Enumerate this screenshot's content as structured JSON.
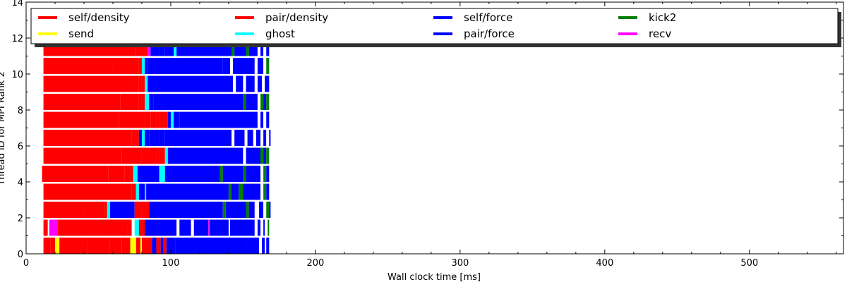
{
  "chart_data": {
    "type": "bar",
    "orientation": "horizontal-timeline",
    "title": "",
    "xlabel": "Wall clock time [ms]",
    "ylabel": "Thread ID for MPI Rank 2",
    "xlim": [
      0,
      565
    ],
    "ylim": [
      0,
      14
    ],
    "xticks": [
      0,
      100,
      200,
      300,
      400,
      500
    ],
    "yticks": [
      0,
      2,
      4,
      6,
      8,
      10,
      12,
      14
    ],
    "legend_position": "top",
    "legend": [
      {
        "name": "self/density",
        "color": "#ff0000"
      },
      {
        "name": "send",
        "color": "#ffff00"
      },
      {
        "name": "pair/density",
        "color": "#ff0000"
      },
      {
        "name": "ghost",
        "color": "#00ffff"
      },
      {
        "name": "self/force",
        "color": "#0000ff"
      },
      {
        "name": "pair/force",
        "color": "#0000ff"
      },
      {
        "name": "kick2",
        "color": "#008000"
      },
      {
        "name": "recv",
        "color": "#ff00ff"
      }
    ],
    "threads": [
      {
        "id": 0,
        "tasks": [
          [
            12,
            17,
            "#ff0000"
          ],
          [
            17,
            20,
            "#ff0000"
          ],
          [
            20,
            22,
            "#ffff00"
          ],
          [
            22,
            23,
            "#ffff00"
          ],
          [
            23,
            42,
            "#ff0000"
          ],
          [
            42,
            58,
            "#ff0000"
          ],
          [
            58,
            66,
            "#ff0000"
          ],
          [
            66,
            72,
            "#ff0000"
          ],
          [
            72,
            76,
            "#ffff00"
          ],
          [
            76,
            79,
            "#ff0000"
          ],
          [
            79,
            80,
            "#ffff00"
          ],
          [
            80,
            87,
            "#ff0000"
          ],
          [
            87,
            90,
            "#0000ff"
          ],
          [
            90,
            93,
            "#ff0000"
          ],
          [
            93,
            95,
            "#0000ff"
          ],
          [
            95,
            97,
            "#ff0000"
          ],
          [
            97,
            103,
            "#0000ff"
          ],
          [
            103,
            152,
            "#0000ff"
          ],
          [
            152,
            161,
            "#0000ff"
          ],
          [
            161,
            163,
            "#ffffff"
          ],
          [
            163,
            165,
            "#0000ff"
          ],
          [
            165,
            166,
            "#ffffff"
          ],
          [
            166,
            168,
            "#0000ff"
          ]
        ]
      },
      {
        "id": 1,
        "tasks": [
          [
            12,
            15,
            "#ff0000"
          ],
          [
            15,
            16,
            "#ffffff"
          ],
          [
            16,
            22,
            "#ff00ff"
          ],
          [
            22,
            70,
            "#ff0000"
          ],
          [
            70,
            73,
            "#ff0000"
          ],
          [
            73,
            75,
            "#ffffff"
          ],
          [
            75,
            78,
            "#00ffff"
          ],
          [
            78,
            82,
            "#ff0000"
          ],
          [
            82,
            104,
            "#0000ff"
          ],
          [
            104,
            106,
            "#ffffff"
          ],
          [
            106,
            114,
            "#0000ff"
          ],
          [
            114,
            116,
            "#ffffff"
          ],
          [
            116,
            126,
            "#0000ff"
          ],
          [
            126,
            127,
            "#ff00ff"
          ],
          [
            127,
            140,
            "#0000ff"
          ],
          [
            140,
            141,
            "#ffffff"
          ],
          [
            141,
            158,
            "#0000ff"
          ],
          [
            158,
            160,
            "#ffffff"
          ],
          [
            160,
            162,
            "#0000ff"
          ],
          [
            162,
            164,
            "#ffffff"
          ],
          [
            164,
            165,
            "#0000ff"
          ],
          [
            165,
            167,
            "#ffffff"
          ],
          [
            167,
            168,
            "#008000"
          ]
        ]
      },
      {
        "id": 2,
        "tasks": [
          [
            12,
            40,
            "#ff0000"
          ],
          [
            40,
            54,
            "#ff0000"
          ],
          [
            54,
            56,
            "#ff0000"
          ],
          [
            56,
            58,
            "#00ffff"
          ],
          [
            58,
            75,
            "#0000ff"
          ],
          [
            75,
            80,
            "#ff0000"
          ],
          [
            80,
            85,
            "#ff0000"
          ],
          [
            85,
            136,
            "#0000ff"
          ],
          [
            136,
            138,
            "#008000"
          ],
          [
            138,
            152,
            "#0000ff"
          ],
          [
            152,
            154,
            "#008000"
          ],
          [
            154,
            158,
            "#0000ff"
          ],
          [
            158,
            161,
            "#ffffff"
          ],
          [
            161,
            164,
            "#0000ff"
          ],
          [
            164,
            166,
            "#ffffff"
          ],
          [
            166,
            168,
            "#008000"
          ],
          [
            168,
            169,
            "#0000ff"
          ]
        ]
      },
      {
        "id": 3,
        "tasks": [
          [
            12,
            73,
            "#ff0000"
          ],
          [
            73,
            76,
            "#ff0000"
          ],
          [
            76,
            78,
            "#00ffff"
          ],
          [
            78,
            82,
            "#0000ff"
          ],
          [
            82,
            83,
            "#00ffff"
          ],
          [
            83,
            140,
            "#0000ff"
          ],
          [
            140,
            142,
            "#008000"
          ],
          [
            142,
            147,
            "#0000ff"
          ],
          [
            147,
            150,
            "#008000"
          ],
          [
            150,
            162,
            "#0000ff"
          ],
          [
            162,
            164,
            "#ffffff"
          ],
          [
            164,
            166,
            "#008000"
          ],
          [
            166,
            168,
            "#0000ff"
          ]
        ]
      },
      {
        "id": 4,
        "tasks": [
          [
            11,
            57,
            "#ff0000"
          ],
          [
            57,
            68,
            "#ff0000"
          ],
          [
            68,
            72,
            "#ff0000"
          ],
          [
            72,
            74,
            "#ff0000"
          ],
          [
            74,
            77,
            "#00ffff"
          ],
          [
            77,
            92,
            "#0000ff"
          ],
          [
            92,
            96,
            "#00ffff"
          ],
          [
            96,
            134,
            "#0000ff"
          ],
          [
            134,
            136,
            "#008000"
          ],
          [
            136,
            150,
            "#0000ff"
          ],
          [
            150,
            152,
            "#008000"
          ],
          [
            152,
            162,
            "#0000ff"
          ],
          [
            162,
            164,
            "#ffffff"
          ],
          [
            164,
            166,
            "#008000"
          ],
          [
            166,
            168,
            "#0000ff"
          ]
        ]
      },
      {
        "id": 5,
        "tasks": [
          [
            12,
            66,
            "#ff0000"
          ],
          [
            66,
            80,
            "#ff0000"
          ],
          [
            80,
            90,
            "#ff0000"
          ],
          [
            90,
            92,
            "#ff0000"
          ],
          [
            92,
            96,
            "#ff0000"
          ],
          [
            96,
            98,
            "#00ffff"
          ],
          [
            98,
            150,
            "#0000ff"
          ],
          [
            150,
            152,
            "#ffffff"
          ],
          [
            152,
            162,
            "#0000ff"
          ],
          [
            162,
            164,
            "#008000"
          ],
          [
            164,
            166,
            "#0000ff"
          ],
          [
            166,
            168,
            "#008000"
          ]
        ]
      },
      {
        "id": 6,
        "tasks": [
          [
            12,
            73,
            "#ff0000"
          ],
          [
            73,
            78,
            "#ff0000"
          ],
          [
            78,
            80,
            "#0000ff"
          ],
          [
            80,
            82,
            "#00ffff"
          ],
          [
            82,
            85,
            "#0000ff"
          ],
          [
            85,
            92,
            "#0000ff"
          ],
          [
            92,
            96,
            "#0000ff"
          ],
          [
            96,
            142,
            "#0000ff"
          ],
          [
            142,
            144,
            "#ffffff"
          ],
          [
            144,
            151,
            "#0000ff"
          ],
          [
            151,
            153,
            "#ffffff"
          ],
          [
            153,
            157,
            "#0000ff"
          ],
          [
            157,
            159,
            "#ffffff"
          ],
          [
            159,
            162,
            "#0000ff"
          ],
          [
            162,
            164,
            "#ffffff"
          ],
          [
            164,
            166,
            "#0000ff"
          ],
          [
            166,
            168,
            "#ffffff"
          ],
          [
            168,
            169,
            "#0000ff"
          ]
        ]
      },
      {
        "id": 7,
        "tasks": [
          [
            12,
            64,
            "#ff0000"
          ],
          [
            64,
            82,
            "#ff0000"
          ],
          [
            82,
            86,
            "#ff0000"
          ],
          [
            86,
            90,
            "#ff0000"
          ],
          [
            90,
            92,
            "#ff0000"
          ],
          [
            92,
            98,
            "#ff0000"
          ],
          [
            98,
            100,
            "#0000ff"
          ],
          [
            100,
            102,
            "#00ffff"
          ],
          [
            102,
            106,
            "#0000ff"
          ],
          [
            106,
            160,
            "#0000ff"
          ],
          [
            160,
            162,
            "#ffffff"
          ],
          [
            162,
            164,
            "#0000ff"
          ],
          [
            164,
            166,
            "#ffffff"
          ],
          [
            166,
            168,
            "#0000ff"
          ]
        ]
      },
      {
        "id": 8,
        "tasks": [
          [
            12,
            65,
            "#ff0000"
          ],
          [
            65,
            78,
            "#ff0000"
          ],
          [
            78,
            80,
            "#ff0000"
          ],
          [
            80,
            82,
            "#ff0000"
          ],
          [
            82,
            85,
            "#00ffff"
          ],
          [
            85,
            88,
            "#0000ff"
          ],
          [
            88,
            150,
            "#0000ff"
          ],
          [
            150,
            152,
            "#008000"
          ],
          [
            152,
            160,
            "#0000ff"
          ],
          [
            160,
            162,
            "#ffffff"
          ],
          [
            162,
            164,
            "#008000"
          ],
          [
            164,
            166,
            "#0000ff"
          ],
          [
            166,
            168,
            "#008000"
          ]
        ]
      },
      {
        "id": 9,
        "tasks": [
          [
            12,
            71,
            "#ff0000"
          ],
          [
            71,
            78,
            "#ff0000"
          ],
          [
            78,
            80,
            "#ff0000"
          ],
          [
            80,
            82,
            "#ff0000"
          ],
          [
            82,
            84,
            "#00ffff"
          ],
          [
            84,
            143,
            "#0000ff"
          ],
          [
            143,
            145,
            "#ffffff"
          ],
          [
            145,
            150,
            "#0000ff"
          ],
          [
            150,
            152,
            "#ffffff"
          ],
          [
            152,
            158,
            "#0000ff"
          ],
          [
            158,
            160,
            "#ffffff"
          ],
          [
            160,
            163,
            "#0000ff"
          ],
          [
            163,
            165,
            "#ffffff"
          ],
          [
            165,
            168,
            "#0000ff"
          ]
        ]
      },
      {
        "id": 10,
        "tasks": [
          [
            12,
            60,
            "#ff0000"
          ],
          [
            60,
            78,
            "#ff0000"
          ],
          [
            78,
            80,
            "#ff0000"
          ],
          [
            80,
            82,
            "#00ffff"
          ],
          [
            82,
            84,
            "#0000ff"
          ],
          [
            84,
            136,
            "#0000ff"
          ],
          [
            136,
            141,
            "#0000ff"
          ],
          [
            141,
            143,
            "#ffffff"
          ],
          [
            143,
            158,
            "#0000ff"
          ],
          [
            158,
            160,
            "#ffffff"
          ],
          [
            160,
            164,
            "#0000ff"
          ],
          [
            164,
            166,
            "#ffffff"
          ],
          [
            166,
            168,
            "#008000"
          ]
        ]
      },
      {
        "id": 11,
        "tasks": [
          [
            12,
            76,
            "#ff0000"
          ],
          [
            76,
            82,
            "#ff0000"
          ],
          [
            82,
            84,
            "#ff0000"
          ],
          [
            84,
            86,
            "#ff00ff"
          ],
          [
            86,
            92,
            "#0000ff"
          ],
          [
            92,
            96,
            "#0000ff"
          ],
          [
            96,
            102,
            "#0000ff"
          ],
          [
            102,
            104,
            "#00ffff"
          ],
          [
            104,
            142,
            "#0000ff"
          ],
          [
            142,
            144,
            "#008000"
          ],
          [
            144,
            152,
            "#0000ff"
          ],
          [
            152,
            154,
            "#008000"
          ],
          [
            154,
            160,
            "#0000ff"
          ],
          [
            160,
            162,
            "#ffffff"
          ],
          [
            162,
            164,
            "#0000ff"
          ],
          [
            164,
            166,
            "#ffffff"
          ],
          [
            166,
            168,
            "#0000ff"
          ]
        ]
      }
    ]
  }
}
